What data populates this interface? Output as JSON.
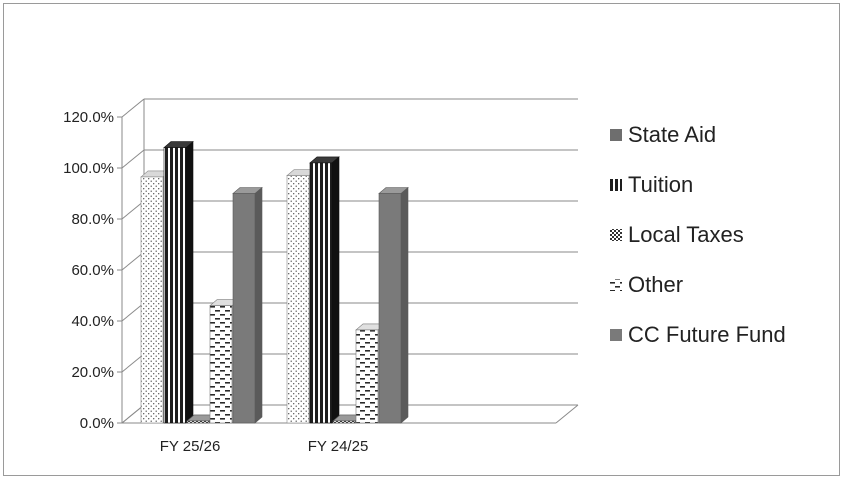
{
  "chart_data": {
    "type": "bar",
    "categories": [
      "FY 25/26",
      "FY 24/25"
    ],
    "series": [
      {
        "name": "State Aid",
        "values": [
          96.5,
          97.0
        ]
      },
      {
        "name": "Tuition",
        "values": [
          108.0,
          102.0
        ]
      },
      {
        "name": "Local Taxes",
        "values": [
          0.8,
          0.8
        ]
      },
      {
        "name": "Other",
        "values": [
          46.0,
          36.5
        ]
      },
      {
        "name": "CC Future Fund",
        "values": [
          90.0,
          90.0
        ]
      }
    ],
    "y_ticks": [
      "0.0%",
      "20.0%",
      "40.0%",
      "60.0%",
      "80.0%",
      "100.0%",
      "120.0%"
    ],
    "ylim": [
      0,
      120
    ],
    "grid": true,
    "legend_position": "right",
    "colors": {
      "state_aid": "#6e6e6e",
      "tuition": "#1e1e1e",
      "local_taxes": "#777777",
      "other": "#2a2a2a",
      "cc_future_fund": "#7a7a7a",
      "grid": "#8a8a8a"
    }
  }
}
